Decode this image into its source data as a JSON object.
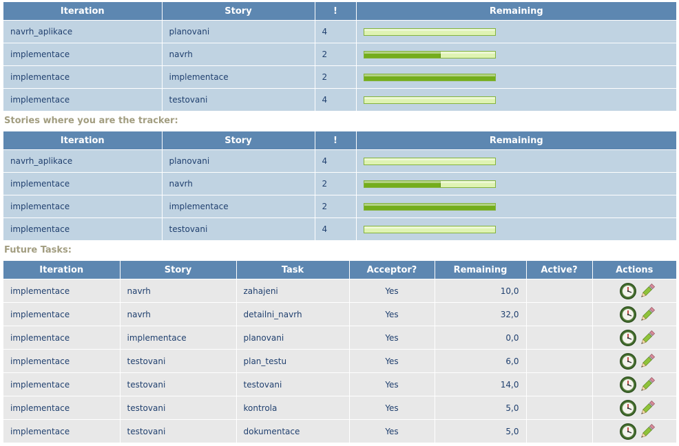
{
  "my_stories": {
    "headers": [
      "Iteration",
      "Story",
      "!",
      "Remaining"
    ],
    "rows": [
      {
        "iteration": "navrh_aplikace",
        "story": "planovani",
        "priority": "4",
        "remaining": 0.0
      },
      {
        "iteration": "implementace",
        "story": "navrh",
        "priority": "2",
        "remaining": 0.58
      },
      {
        "iteration": "implementace",
        "story": "implementace",
        "priority": "2",
        "remaining": 1.0
      },
      {
        "iteration": "implementace",
        "story": "testovani",
        "priority": "4",
        "remaining": 0.0
      }
    ]
  },
  "tracker_section": {
    "title": "Stories where you are the tracker:",
    "headers": [
      "Iteration",
      "Story",
      "!",
      "Remaining"
    ],
    "rows": [
      {
        "iteration": "navrh_aplikace",
        "story": "planovani",
        "priority": "4",
        "remaining": 0.0
      },
      {
        "iteration": "implementace",
        "story": "navrh",
        "priority": "2",
        "remaining": 0.58
      },
      {
        "iteration": "implementace",
        "story": "implementace",
        "priority": "2",
        "remaining": 1.0
      },
      {
        "iteration": "implementace",
        "story": "testovani",
        "priority": "4",
        "remaining": 0.0
      }
    ]
  },
  "future_tasks": {
    "title": "Future Tasks:",
    "headers": [
      "Iteration",
      "Story",
      "Task",
      "Acceptor?",
      "Remaining",
      "Active?",
      "Actions"
    ],
    "rows": [
      {
        "iteration": "implementace",
        "story": "navrh",
        "task": "zahajeni",
        "acceptor": "Yes",
        "remaining": "10,0",
        "active": ""
      },
      {
        "iteration": "implementace",
        "story": "navrh",
        "task": "detailni_navrh",
        "acceptor": "Yes",
        "remaining": "32,0",
        "active": ""
      },
      {
        "iteration": "implementace",
        "story": "implementace",
        "task": "planovani",
        "acceptor": "Yes",
        "remaining": "0,0",
        "active": ""
      },
      {
        "iteration": "implementace",
        "story": "testovani",
        "task": "plan_testu",
        "acceptor": "Yes",
        "remaining": "6,0",
        "active": ""
      },
      {
        "iteration": "implementace",
        "story": "testovani",
        "task": "testovani",
        "acceptor": "Yes",
        "remaining": "14,0",
        "active": ""
      },
      {
        "iteration": "implementace",
        "story": "testovani",
        "task": "kontrola",
        "acceptor": "Yes",
        "remaining": "5,0",
        "active": ""
      },
      {
        "iteration": "implementace",
        "story": "testovani",
        "task": "dokumentace",
        "acceptor": "Yes",
        "remaining": "5,0",
        "active": ""
      }
    ],
    "row_actions": [
      {
        "icon": "clock-icon"
      },
      {
        "icon": "pencil-edit-icon"
      }
    ]
  },
  "colors": {
    "header_bg": "#5d87b1",
    "blue_row_bg": "#c0d3e2",
    "gray_row_bg": "#e8e8e8",
    "text": "#1f3f6e",
    "section_title": "#a29d80",
    "bar_fill": "#74ad1c",
    "bar_empty": "#dff3b3"
  }
}
